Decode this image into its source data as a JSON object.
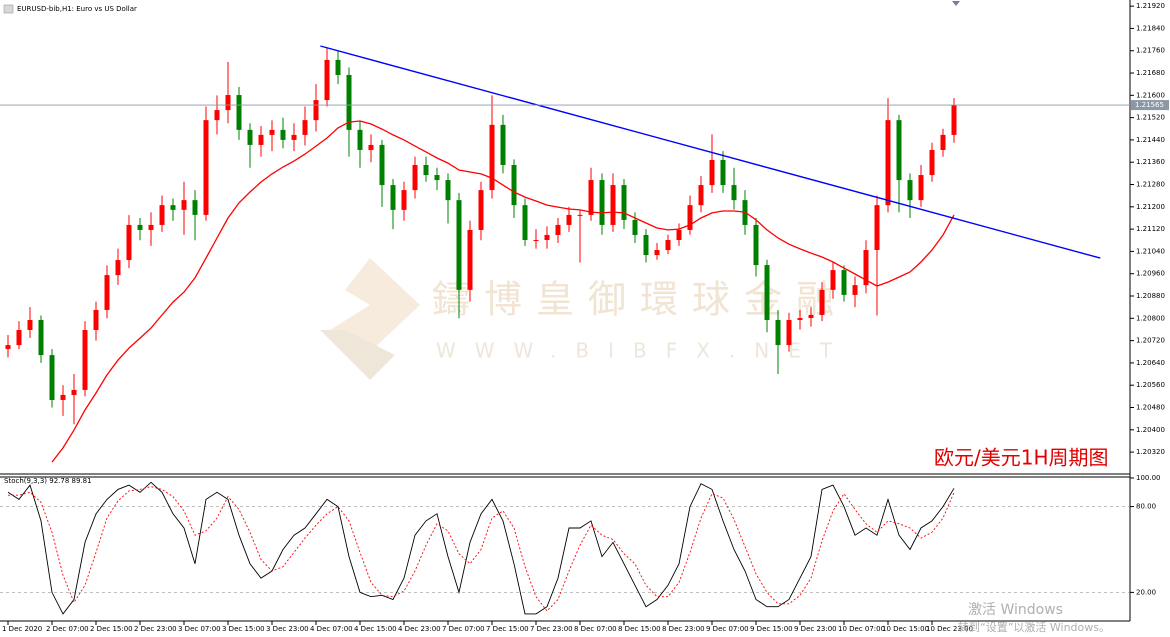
{
  "chart_data": [
    {
      "type": "candlestick",
      "title": "EURUSD-bib,H1: Euro vs US Dollar",
      "annotation": "欧元/美元1H周期图",
      "up_color": "#ff0000",
      "down_color": "#008000",
      "ylim": [
        1.20245,
        1.21942
      ],
      "yticks": [
        {
          "value": 1.2032,
          "label": "1.20320"
        },
        {
          "value": 1.204,
          "label": "1.20400"
        },
        {
          "value": 1.2048,
          "label": "1.20480"
        },
        {
          "value": 1.2056,
          "label": "1.20560"
        },
        {
          "value": 1.2064,
          "label": "1.20640"
        },
        {
          "value": 1.2072,
          "label": "1.20720"
        },
        {
          "value": 1.208,
          "label": "1.20800"
        },
        {
          "value": 1.2088,
          "label": "1.20880"
        },
        {
          "value": 1.2096,
          "label": "1.20960"
        },
        {
          "value": 1.2104,
          "label": "1.21040"
        },
        {
          "value": 1.2112,
          "label": "1.21120"
        },
        {
          "value": 1.212,
          "label": "1.21200"
        },
        {
          "value": 1.2128,
          "label": "1.21280"
        },
        {
          "value": 1.2136,
          "label": "1.21360"
        },
        {
          "value": 1.2144,
          "label": "1.21440"
        },
        {
          "value": 1.2152,
          "label": "1.21520"
        },
        {
          "value": 1.216,
          "label": "1.21600"
        },
        {
          "value": 1.2168,
          "label": "1.21680"
        },
        {
          "value": 1.2176,
          "label": "1.21760"
        },
        {
          "value": 1.2184,
          "label": "1.21840"
        },
        {
          "value": 1.2192,
          "label": "1.21920"
        }
      ],
      "last_price": 1.21565,
      "categories": [
        "1 Dec 2020",
        null,
        null,
        null,
        "2 Dec 07:00",
        null,
        null,
        null,
        "2 Dec 15:00",
        null,
        null,
        null,
        "2 Dec 23:00",
        null,
        null,
        null,
        "3 Dec 07:00",
        null,
        null,
        null,
        "3 Dec 15:00",
        null,
        null,
        null,
        "3 Dec 23:00",
        null,
        null,
        null,
        "4 Dec 07:00",
        null,
        null,
        null,
        "4 Dec 15:00",
        null,
        null,
        null,
        "4 Dec 23:00",
        null,
        null,
        null,
        "7 Dec 07:00",
        null,
        null,
        null,
        "7 Dec 15:00",
        null,
        null,
        null,
        "7 Dec 23:00",
        null,
        null,
        null,
        "8 Dec 07:00",
        null,
        null,
        null,
        "8 Dec 15:00",
        null,
        null,
        null,
        "8 Dec 23:00",
        null,
        null,
        null,
        "9 Dec 07:00",
        null,
        null,
        null,
        "9 Dec 15:00",
        null,
        null,
        null,
        "9 Dec 23:00",
        null,
        null,
        null,
        "10 Dec 07:00",
        null,
        null,
        null,
        "10 Dec 15:00",
        null,
        null,
        null,
        "10 Dec 23:00",
        null,
        null
      ],
      "ohlc": [
        [
          1.2069,
          1.2074,
          1.2066,
          1.20704
        ],
        [
          1.20704,
          1.2079,
          1.2069,
          1.20758
        ],
        [
          1.20758,
          1.2084,
          1.2073,
          1.20794
        ],
        [
          1.20794,
          1.2081,
          1.2064,
          1.20668
        ],
        [
          1.20668,
          1.2069,
          1.2048,
          1.20507
        ],
        [
          1.20507,
          1.2056,
          1.2045,
          1.20525
        ],
        [
          1.20525,
          1.206,
          1.2042,
          1.20543
        ],
        [
          1.20543,
          1.2079,
          1.2052,
          1.20758
        ],
        [
          1.20758,
          1.2086,
          1.2072,
          1.2083
        ],
        [
          1.2083,
          1.2099,
          1.208,
          1.20955
        ],
        [
          1.20955,
          1.2105,
          1.2092,
          1.21009
        ],
        [
          1.21009,
          1.2117,
          1.2098,
          1.21135
        ],
        [
          1.21135,
          1.2116,
          1.2108,
          1.21117
        ],
        [
          1.21117,
          1.2118,
          1.2106,
          1.21135
        ],
        [
          1.21135,
          1.2124,
          1.2111,
          1.21206
        ],
        [
          1.21206,
          1.2123,
          1.2115,
          1.21189
        ],
        [
          1.21189,
          1.2129,
          1.211,
          1.21224
        ],
        [
          1.21224,
          1.2126,
          1.2108,
          1.21171
        ],
        [
          1.21171,
          1.2156,
          1.2115,
          1.21511
        ],
        [
          1.21511,
          1.216,
          1.2146,
          1.21547
        ],
        [
          1.21547,
          1.2172,
          1.215,
          1.21601
        ],
        [
          1.21601,
          1.2163,
          1.2144,
          1.21476
        ],
        [
          1.21476,
          1.215,
          1.2134,
          1.21422
        ],
        [
          1.21422,
          1.2149,
          1.2138,
          1.21458
        ],
        [
          1.21458,
          1.2151,
          1.214,
          1.21476
        ],
        [
          1.21476,
          1.2152,
          1.2141,
          1.2144
        ],
        [
          1.2144,
          1.215,
          1.214,
          1.21458
        ],
        [
          1.21458,
          1.2156,
          1.2142,
          1.21511
        ],
        [
          1.21511,
          1.2164,
          1.2147,
          1.21583
        ],
        [
          1.21583,
          1.2177,
          1.2156,
          1.21727
        ],
        [
          1.21727,
          1.2176,
          1.2164,
          1.21673
        ],
        [
          1.21673,
          1.217,
          1.2138,
          1.21476
        ],
        [
          1.21476,
          1.2151,
          1.2134,
          1.21404
        ],
        [
          1.21404,
          1.2146,
          1.2136,
          1.21422
        ],
        [
          1.21422,
          1.2144,
          1.212,
          1.21278
        ],
        [
          1.21278,
          1.213,
          1.2112,
          1.21189
        ],
        [
          1.21189,
          1.2129,
          1.2115,
          1.2126
        ],
        [
          1.2126,
          1.2138,
          1.2123,
          1.2135
        ],
        [
          1.2135,
          1.2138,
          1.2129,
          1.21314
        ],
        [
          1.21314,
          1.2134,
          1.2126,
          1.21296
        ],
        [
          1.21296,
          1.2132,
          1.2114,
          1.21224
        ],
        [
          1.21224,
          1.2125,
          1.208,
          1.20902
        ],
        [
          1.20902,
          1.2115,
          1.2086,
          1.21117
        ],
        [
          1.21117,
          1.2129,
          1.2108,
          1.2126
        ],
        [
          1.2126,
          1.216,
          1.2123,
          1.21494
        ],
        [
          1.21494,
          1.2153,
          1.2132,
          1.2135
        ],
        [
          1.2135,
          1.2137,
          1.2116,
          1.21206
        ],
        [
          1.21206,
          1.2123,
          1.2106,
          1.21081
        ],
        [
          1.21081,
          1.2112,
          1.2105,
          1.21081
        ],
        [
          1.21081,
          1.2113,
          1.2105,
          1.21099
        ],
        [
          1.21099,
          1.2116,
          1.2107,
          1.21135
        ],
        [
          1.21135,
          1.212,
          1.2111,
          1.21171
        ],
        [
          1.21171,
          1.2119,
          1.21,
          1.21171
        ],
        [
          1.21171,
          1.2134,
          1.2115,
          1.21296
        ],
        [
          1.21296,
          1.2132,
          1.211,
          1.21135
        ],
        [
          1.21135,
          1.2132,
          1.2111,
          1.21278
        ],
        [
          1.21278,
          1.213,
          1.2112,
          1.21153
        ],
        [
          1.21153,
          1.2118,
          1.2107,
          1.21099
        ],
        [
          1.21099,
          1.2112,
          1.21,
          1.21027
        ],
        [
          1.21027,
          1.2107,
          1.2101,
          1.21045
        ],
        [
          1.21045,
          1.211,
          1.2103,
          1.21081
        ],
        [
          1.21081,
          1.2114,
          1.2106,
          1.21117
        ],
        [
          1.21117,
          1.2124,
          1.211,
          1.21206
        ],
        [
          1.21206,
          1.2131,
          1.2118,
          1.21278
        ],
        [
          1.21278,
          1.2146,
          1.2125,
          1.21368
        ],
        [
          1.21368,
          1.214,
          1.2125,
          1.21278
        ],
        [
          1.21278,
          1.2134,
          1.2119,
          1.21224
        ],
        [
          1.21224,
          1.2126,
          1.211,
          1.21135
        ],
        [
          1.21135,
          1.2116,
          1.2095,
          1.20991
        ],
        [
          1.20991,
          1.2101,
          1.2075,
          1.20794
        ],
        [
          1.20794,
          1.2083,
          1.206,
          1.20704
        ],
        [
          1.20704,
          1.2082,
          1.2068,
          1.20794
        ],
        [
          1.20794,
          1.2083,
          1.2076,
          1.20801
        ],
        [
          1.20801,
          1.2084,
          1.2077,
          1.20812
        ],
        [
          1.20812,
          1.2093,
          1.2079,
          1.20902
        ],
        [
          1.20902,
          1.21,
          1.2087,
          1.20973
        ],
        [
          1.20973,
          1.2099,
          1.2086,
          1.20884
        ],
        [
          1.20884,
          1.2095,
          1.2084,
          1.20919
        ],
        [
          1.20919,
          1.2108,
          1.2089,
          1.21045
        ],
        [
          1.21045,
          1.2124,
          1.2081,
          1.21206
        ],
        [
          1.21206,
          1.2159,
          1.2118,
          1.21511
        ],
        [
          1.21511,
          1.2153,
          1.2118,
          1.21296
        ],
        [
          1.21296,
          1.2132,
          1.2116,
          1.21224
        ],
        [
          1.21224,
          1.2135,
          1.212,
          1.21314
        ],
        [
          1.21314,
          1.2143,
          1.2129,
          1.21404
        ],
        [
          1.21404,
          1.2148,
          1.2138,
          1.21458
        ],
        [
          1.21458,
          1.2159,
          1.2143,
          1.21565
        ]
      ],
      "ma": {
        "color": "#ff0000",
        "values": [
          null,
          null,
          null,
          null,
          1.20284,
          1.20335,
          1.20399,
          1.20471,
          1.20532,
          1.20597,
          1.2065,
          1.20693,
          1.20729,
          1.20765,
          1.20812,
          1.20858,
          1.20894,
          1.20945,
          1.21016,
          1.21088,
          1.2116,
          1.21214,
          1.21253,
          1.21289,
          1.21318,
          1.21343,
          1.21364,
          1.21389,
          1.21418,
          1.21447,
          1.21483,
          1.21504,
          1.21508,
          1.21497,
          1.21479,
          1.21458,
          1.2144,
          1.21418,
          1.21397,
          1.21375,
          1.21357,
          1.21332,
          1.21325,
          1.21318,
          1.21303,
          1.21278,
          1.21253,
          1.21235,
          1.21221,
          1.21206,
          1.21199,
          1.21192,
          1.21189,
          1.21181,
          1.21178,
          1.21181,
          1.21178,
          1.2116,
          1.21142,
          1.21124,
          1.21117,
          1.2112,
          1.21135,
          1.2116,
          1.21178,
          1.21185,
          1.21185,
          1.21181,
          1.21153,
          1.21117,
          1.21088,
          1.21066,
          1.21049,
          1.21034,
          1.2102,
          1.21002,
          1.2098,
          1.20959,
          1.20937,
          1.20916,
          1.2093,
          1.20948,
          1.20966,
          1.21002,
          1.21045,
          1.21099,
          1.21171
        ]
      },
      "trendline": {
        "color": "#0000ff",
        "x": [
          28.4,
          99.3
        ],
        "values": [
          1.21777,
          1.21016
        ]
      }
    },
    {
      "type": "line",
      "title": "Stoch(9,3,3) 92.78 89.81",
      "ylim": [
        0,
        100
      ],
      "grid": true,
      "yticks": [
        {
          "value": 100,
          "label": "100.00"
        },
        {
          "value": 80,
          "label": "80.00"
        },
        {
          "value": 20,
          "label": "20.00"
        }
      ],
      "series": [
        {
          "color": "#000000",
          "style": "solid",
          "values": [
            90,
            85,
            95,
            70,
            20,
            5,
            15,
            55,
            75,
            85,
            92,
            95,
            90,
            97,
            90,
            75,
            65,
            40,
            85,
            90,
            85,
            60,
            40,
            30,
            35,
            50,
            60,
            65,
            75,
            85,
            80,
            45,
            20,
            17,
            18,
            15,
            30,
            60,
            70,
            75,
            45,
            20,
            55,
            75,
            85,
            70,
            40,
            5,
            5,
            10,
            30,
            65,
            65,
            70,
            45,
            55,
            40,
            25,
            10,
            15,
            25,
            40,
            80,
            96,
            92,
            70,
            50,
            35,
            15,
            10,
            10,
            15,
            30,
            45,
            92,
            95,
            80,
            60,
            65,
            60,
            85,
            60,
            50,
            65,
            70,
            80,
            92.78
          ]
        },
        {
          "color": "#ff0000",
          "style": "dotted",
          "values": [
            88,
            88,
            90,
            83,
            62,
            32,
            13,
            25,
            48,
            72,
            84,
            91,
            92,
            94,
            92,
            87,
            77,
            60,
            63,
            72,
            87,
            78,
            62,
            43,
            35,
            38,
            48,
            58,
            67,
            75,
            80,
            70,
            48,
            27,
            18,
            17,
            21,
            35,
            53,
            68,
            63,
            47,
            40,
            50,
            72,
            77,
            65,
            38,
            17,
            7,
            15,
            35,
            53,
            67,
            60,
            57,
            47,
            40,
            25,
            17,
            17,
            27,
            48,
            72,
            89,
            86,
            71,
            52,
            33,
            20,
            12,
            12,
            18,
            30,
            56,
            77,
            89,
            78,
            68,
            62,
            70,
            68,
            65,
            58,
            62,
            72,
            89.81
          ]
        }
      ]
    }
  ],
  "watermark": {
    "name": "鑄博皇御環球金融",
    "url": "WWW.BIBFX.NET"
  },
  "os_notice": {
    "title": "激活 Windows",
    "hint": "转到“设置”以激活 Windows。"
  }
}
